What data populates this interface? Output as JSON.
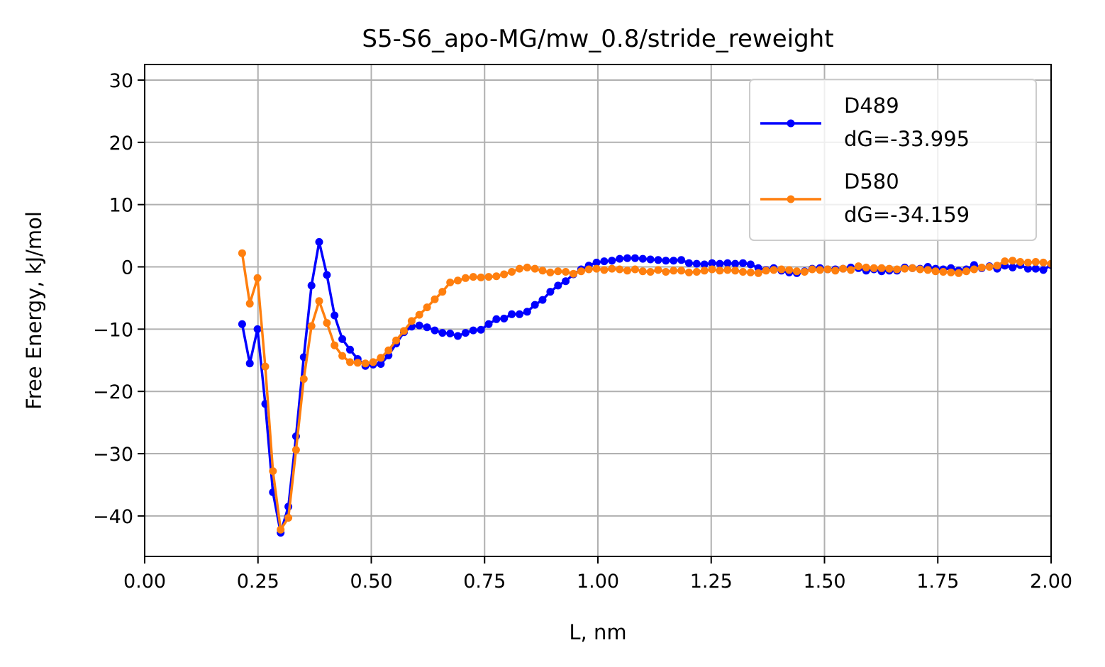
{
  "chart_data": {
    "type": "line",
    "title": "S5-S6_apo-MG/mw_0.8/stride_reweight",
    "xlabel": "L, nm",
    "ylabel": "Free Energy, kJ/mol",
    "xlim": [
      0.0,
      2.0
    ],
    "ylim": [
      -46.5,
      32.5
    ],
    "x_ticks": [
      "0.00",
      "0.25",
      "0.50",
      "0.75",
      "1.00",
      "1.25",
      "1.50",
      "1.75",
      "2.00"
    ],
    "y_ticks": [
      "−40",
      "−30",
      "−20",
      "−10",
      "0",
      "10",
      "20",
      "30"
    ],
    "grid": true,
    "legend_position": "top-right",
    "series": [
      {
        "name": "D489",
        "label_line2": "dG=-33.995",
        "color": "#0000ff",
        "x": [
          0.215,
          0.232,
          0.249,
          0.266,
          0.283,
          0.3,
          0.317,
          0.334,
          0.351,
          0.368,
          0.385,
          0.402,
          0.419,
          0.436,
          0.453,
          0.47,
          0.487,
          0.504,
          0.521,
          0.538,
          0.555,
          0.572,
          0.589,
          0.606,
          0.623,
          0.64,
          0.657,
          0.674,
          0.691,
          0.708,
          0.725,
          0.742,
          0.759,
          0.776,
          0.793,
          0.81,
          0.827,
          0.844,
          0.861,
          0.878,
          0.895,
          0.912,
          0.929,
          0.946,
          0.963,
          0.98,
          0.997,
          1.014,
          1.031,
          1.048,
          1.065,
          1.082,
          1.099,
          1.116,
          1.133,
          1.15,
          1.167,
          1.184,
          1.201,
          1.218,
          1.235,
          1.252,
          1.269,
          1.286,
          1.303,
          1.32,
          1.337,
          1.354,
          1.371,
          1.388,
          1.405,
          1.422,
          1.439,
          1.456,
          1.473,
          1.49,
          1.507,
          1.524,
          1.541,
          1.558,
          1.575,
          1.592,
          1.609,
          1.626,
          1.643,
          1.66,
          1.677,
          1.694,
          1.711,
          1.728,
          1.745,
          1.762,
          1.779,
          1.796,
          1.813,
          1.83,
          1.847,
          1.864,
          1.881,
          1.898,
          1.915,
          1.932,
          1.949,
          1.966,
          1.983,
          2.0
        ],
        "y": [
          -9.2,
          -15.5,
          -10.0,
          -22.0,
          -36.2,
          -42.7,
          -38.5,
          -27.2,
          -14.5,
          -3.0,
          4.0,
          -1.3,
          -7.8,
          -11.6,
          -13.3,
          -14.8,
          -15.9,
          -15.7,
          -15.6,
          -14.2,
          -12.3,
          -10.5,
          -9.6,
          -9.4,
          -9.7,
          -10.2,
          -10.6,
          -10.7,
          -11.1,
          -10.6,
          -10.2,
          -10.1,
          -9.2,
          -8.4,
          -8.3,
          -7.6,
          -7.6,
          -7.2,
          -6.1,
          -5.3,
          -4.0,
          -3.0,
          -2.3,
          -1.2,
          -0.4,
          0.2,
          0.7,
          0.9,
          1.0,
          1.3,
          1.4,
          1.4,
          1.3,
          1.2,
          1.1,
          1.0,
          1.0,
          1.1,
          0.6,
          0.5,
          0.4,
          0.6,
          0.5,
          0.6,
          0.5,
          0.6,
          0.4,
          -0.2,
          -0.5,
          -0.2,
          -0.6,
          -0.9,
          -1.0,
          -0.7,
          -0.3,
          -0.2,
          -0.4,
          -0.4,
          -0.3,
          -0.1,
          -0.2,
          -0.6,
          -0.4,
          -0.7,
          -0.6,
          -0.6,
          -0.1,
          -0.2,
          -0.3,
          0.0,
          -0.3,
          -0.4,
          -0.2,
          -0.6,
          -0.4,
          0.3,
          -0.2,
          0.1,
          -0.3,
          0.2,
          -0.1,
          0.3,
          -0.3,
          -0.3,
          -0.5,
          0.3
        ],
        "values_note": ""
      },
      {
        "name": "D580",
        "label_line2": "dG=-34.159",
        "color": "#ff7f0e",
        "x": [
          0.215,
          0.232,
          0.249,
          0.266,
          0.283,
          0.3,
          0.317,
          0.334,
          0.351,
          0.368,
          0.385,
          0.402,
          0.419,
          0.436,
          0.453,
          0.47,
          0.487,
          0.504,
          0.521,
          0.538,
          0.555,
          0.572,
          0.589,
          0.606,
          0.623,
          0.64,
          0.657,
          0.674,
          0.691,
          0.708,
          0.725,
          0.742,
          0.759,
          0.776,
          0.793,
          0.81,
          0.827,
          0.844,
          0.861,
          0.878,
          0.895,
          0.912,
          0.929,
          0.946,
          0.963,
          0.98,
          0.997,
          1.014,
          1.031,
          1.048,
          1.065,
          1.082,
          1.099,
          1.116,
          1.133,
          1.15,
          1.167,
          1.184,
          1.201,
          1.218,
          1.235,
          1.252,
          1.269,
          1.286,
          1.303,
          1.32,
          1.337,
          1.354,
          1.371,
          1.388,
          1.405,
          1.422,
          1.439,
          1.456,
          1.473,
          1.49,
          1.507,
          1.524,
          1.541,
          1.558,
          1.575,
          1.592,
          1.609,
          1.626,
          1.643,
          1.66,
          1.677,
          1.694,
          1.711,
          1.728,
          1.745,
          1.762,
          1.779,
          1.796,
          1.813,
          1.83,
          1.847,
          1.864,
          1.881,
          1.898,
          1.915,
          1.932,
          1.949,
          1.966,
          1.983,
          2.0
        ],
        "y": [
          2.2,
          -5.9,
          -1.8,
          -16.0,
          -32.8,
          -42.2,
          -40.3,
          -29.4,
          -18.0,
          -9.5,
          -5.5,
          -9.0,
          -12.6,
          -14.3,
          -15.3,
          -15.4,
          -15.5,
          -15.3,
          -14.6,
          -13.4,
          -11.8,
          -10.3,
          -8.7,
          -7.7,
          -6.5,
          -5.2,
          -4.0,
          -2.5,
          -2.2,
          -1.8,
          -1.6,
          -1.7,
          -1.6,
          -1.5,
          -1.2,
          -0.8,
          -0.3,
          -0.1,
          -0.3,
          -0.6,
          -0.9,
          -0.7,
          -0.8,
          -1.1,
          -0.7,
          -0.4,
          -0.3,
          -0.5,
          -0.3,
          -0.4,
          -0.6,
          -0.4,
          -0.7,
          -0.8,
          -0.5,
          -0.8,
          -0.6,
          -0.6,
          -0.9,
          -0.8,
          -0.6,
          -0.4,
          -0.6,
          -0.5,
          -0.6,
          -0.8,
          -0.9,
          -1.0,
          -0.6,
          -0.5,
          -0.4,
          -0.5,
          -0.7,
          -0.8,
          -0.4,
          -0.5,
          -0.4,
          -0.6,
          -0.3,
          -0.5,
          0.1,
          -0.1,
          -0.2,
          -0.2,
          -0.3,
          -0.4,
          -0.3,
          -0.2,
          -0.4,
          -0.5,
          -0.7,
          -0.8,
          -0.9,
          -1.0,
          -0.7,
          -0.4,
          -0.1,
          0.0,
          0.2,
          0.9,
          1.0,
          0.8,
          0.7,
          0.8,
          0.7,
          0.5
        ],
        "values_note": ""
      }
    ]
  }
}
